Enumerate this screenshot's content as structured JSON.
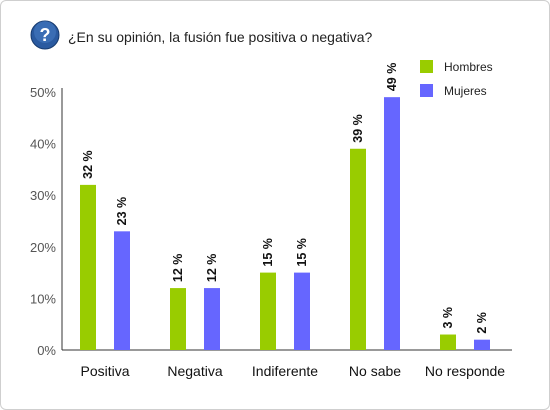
{
  "header": {
    "title": "¿En su opinión, la fusión fue positiva o negativa?",
    "icon": "question-icon",
    "icon_glyph": "?",
    "icon_color": "#1f4e8c"
  },
  "chart_data": {
    "type": "bar",
    "title": "¿En su opinión, la fusión fue positiva o negativa?",
    "xlabel": "",
    "ylabel": "",
    "categories": [
      "Positiva",
      "Negativa",
      "Indiferente",
      "No sabe",
      "No responde"
    ],
    "series": [
      {
        "name": "Hombres",
        "color": "#99cc00",
        "values": [
          32,
          12,
          15,
          39,
          3
        ],
        "labels": [
          "32 %",
          "12 %",
          "15 %",
          "39 %",
          "3 %"
        ]
      },
      {
        "name": "Mujeres",
        "color": "#6666ff",
        "values": [
          23,
          12,
          15,
          49,
          2
        ],
        "labels": [
          "23 %",
          "12 %",
          "15 %",
          "49 %",
          "2 %"
        ]
      }
    ],
    "ylim": [
      0,
      50
    ],
    "yticks": [
      0,
      10,
      20,
      30,
      40,
      50
    ],
    "ytick_labels": [
      "0%",
      "10%",
      "20%",
      "30%",
      "40%",
      "50%"
    ],
    "grid": false,
    "legend_position": "top-right"
  }
}
